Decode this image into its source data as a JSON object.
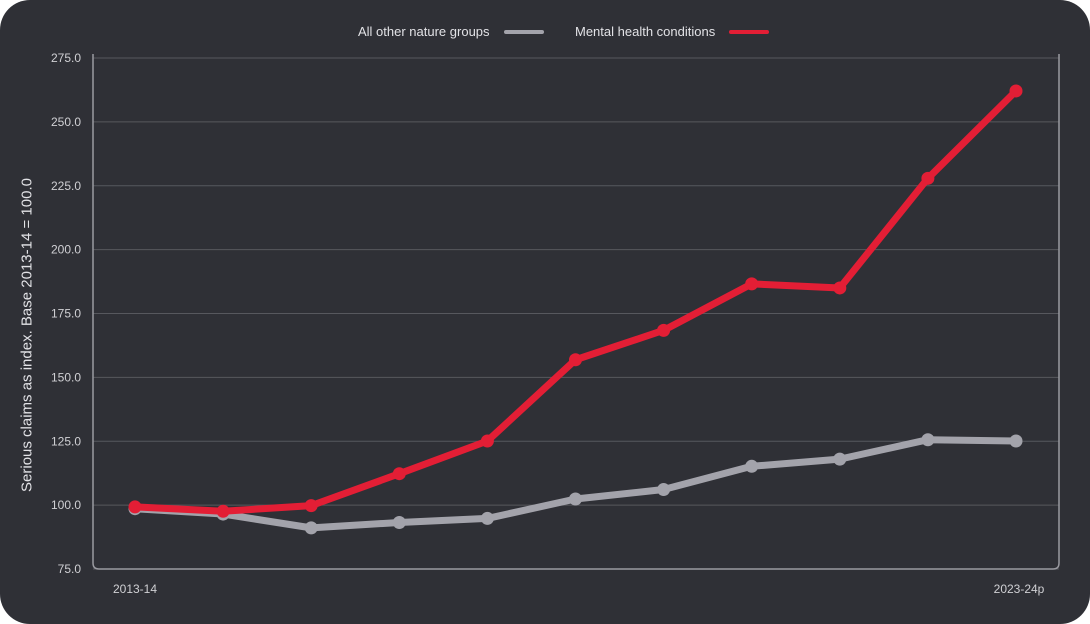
{
  "chart_data": {
    "type": "line",
    "title": "",
    "xlabel": "",
    "ylabel": "Serious claims as index. Base 2013-14 = 100.0",
    "x_tick_labels": [
      "2013-14",
      "2023-24p"
    ],
    "y_ticks": [
      "75.0",
      "100.0",
      "125.0",
      "150.0",
      "175.0",
      "200.0",
      "225.0",
      "250.0",
      "275.0"
    ],
    "ylim": [
      75,
      275
    ],
    "grid": true,
    "legend_position": "top-center",
    "categories": [
      "2013-14",
      "",
      "",
      "",
      "",
      "",
      "",
      "",
      "",
      "",
      "2023-24p"
    ],
    "series": [
      {
        "name": "All other nature groups",
        "color": "#a3a3ab",
        "values": [
          98.6,
          96.5,
          91.1,
          93.2,
          94.8,
          102.4,
          106.1,
          115.2,
          118.0,
          125.6,
          125.1
        ]
      },
      {
        "name": "Mental health conditions",
        "color": "#e31e35",
        "values": [
          99.3,
          97.6,
          99.8,
          112.3,
          125.1,
          156.9,
          168.4,
          186.6,
          185.0,
          227.9,
          262.1
        ]
      }
    ]
  },
  "colors": {
    "background": "#2f3036",
    "grid": "#57585e",
    "axis": "#9a9aa0"
  }
}
